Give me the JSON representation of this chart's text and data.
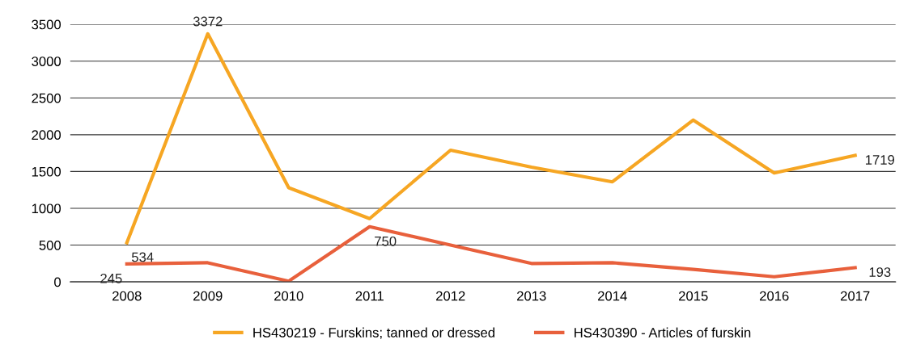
{
  "chart_data": {
    "type": "line",
    "categories": [
      "2008",
      "2009",
      "2010",
      "2011",
      "2012",
      "2013",
      "2014",
      "2015",
      "2016",
      "2017"
    ],
    "series": [
      {
        "name": "HS430219 - Furskins; tanned or dressed",
        "color": "#f6a623",
        "values": [
          534,
          3372,
          1280,
          860,
          1790,
          1560,
          1360,
          2200,
          1480,
          1719
        ],
        "value_labels": [
          "534",
          "3372",
          null,
          null,
          null,
          null,
          null,
          null,
          null,
          "1719"
        ]
      },
      {
        "name": "HS430390 - Articles of furskin",
        "color": "#e8603c",
        "values": [
          245,
          260,
          10,
          750,
          500,
          250,
          260,
          170,
          70,
          193
        ],
        "value_labels": [
          "245",
          null,
          null,
          "750",
          null,
          null,
          null,
          null,
          null,
          "193"
        ]
      }
    ],
    "ylim": [
      0,
      3500
    ],
    "yticks": [
      0,
      500,
      1000,
      1500,
      2000,
      2500,
      3000,
      3500
    ],
    "grid": "y",
    "legend": "bottom",
    "marker": "none",
    "line_style": "solid"
  }
}
